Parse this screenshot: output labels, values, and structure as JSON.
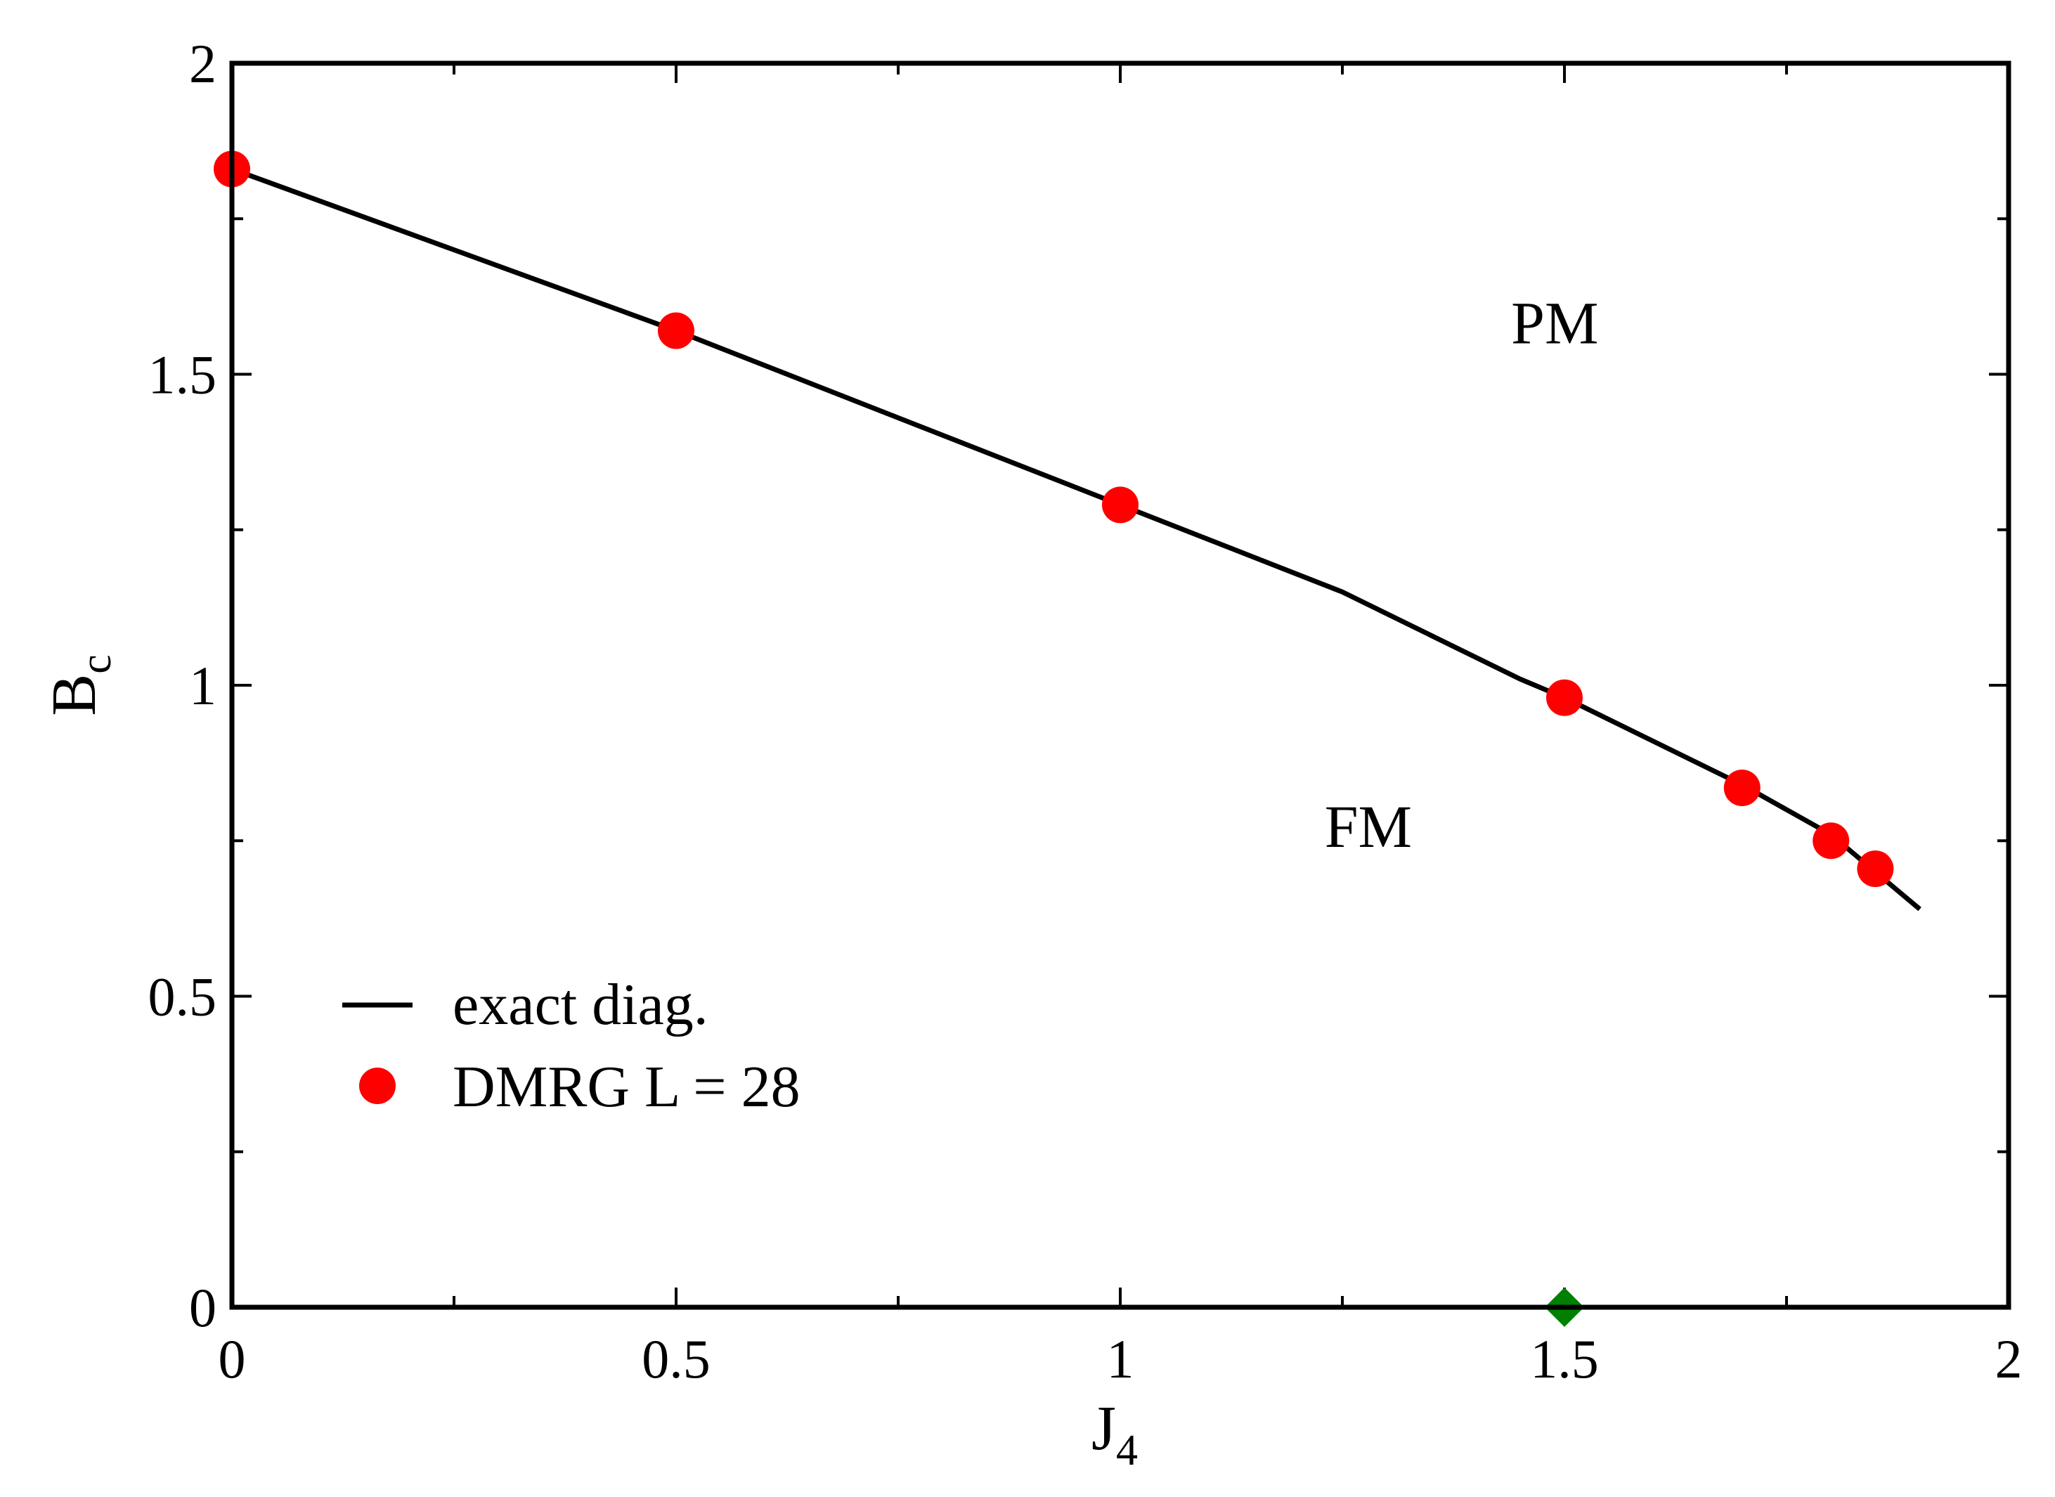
{
  "chart_data": {
    "type": "line",
    "xlabel": "J",
    "xlabel_sub": "4",
    "ylabel": "B",
    "ylabel_sub": "c",
    "xlim": [
      0,
      2
    ],
    "ylim": [
      0,
      2
    ],
    "x_major_ticks": [
      0,
      0.5,
      1,
      1.5,
      2
    ],
    "x_major_tick_labels": [
      "0",
      "0.5",
      "1",
      "1.5",
      "2"
    ],
    "x_minor_ticks": [
      0.25,
      0.75,
      1.25,
      1.75
    ],
    "y_major_ticks": [
      0,
      0.5,
      1,
      1.5,
      2
    ],
    "y_major_tick_labels": [
      "0",
      "0.5",
      "1",
      "1.5",
      "2"
    ],
    "y_minor_ticks": [
      0.25,
      0.75,
      1.25,
      1.75
    ],
    "grid": false,
    "legend_position": "bottom-left",
    "series": [
      {
        "name": "exact diag.",
        "kind": "line",
        "color": "#000000",
        "x": [
          0,
          0.25,
          0.5,
          0.75,
          1.0,
          1.25,
          1.45,
          1.5,
          1.7,
          1.8,
          1.85,
          1.9
        ],
        "y": [
          1.83,
          1.7,
          1.57,
          1.43,
          1.29,
          1.15,
          1.01,
          0.98,
          0.84,
          0.76,
          0.7,
          0.64
        ]
      },
      {
        "name": "DMRG L = 28",
        "kind": "scatter",
        "color": "#ff0000",
        "x": [
          0,
          0.5,
          1.0,
          1.5,
          1.7,
          1.8,
          1.85
        ],
        "y": [
          1.83,
          1.57,
          1.29,
          0.98,
          0.835,
          0.75,
          0.705
        ]
      },
      {
        "kind": "marker",
        "color": "#008000",
        "x": [
          1.5
        ],
        "y": [
          0
        ]
      }
    ],
    "annotations": [
      {
        "text": "PM",
        "x": 1.44,
        "y": 1.55
      },
      {
        "text": "FM",
        "x": 1.23,
        "y": 0.74
      }
    ]
  }
}
